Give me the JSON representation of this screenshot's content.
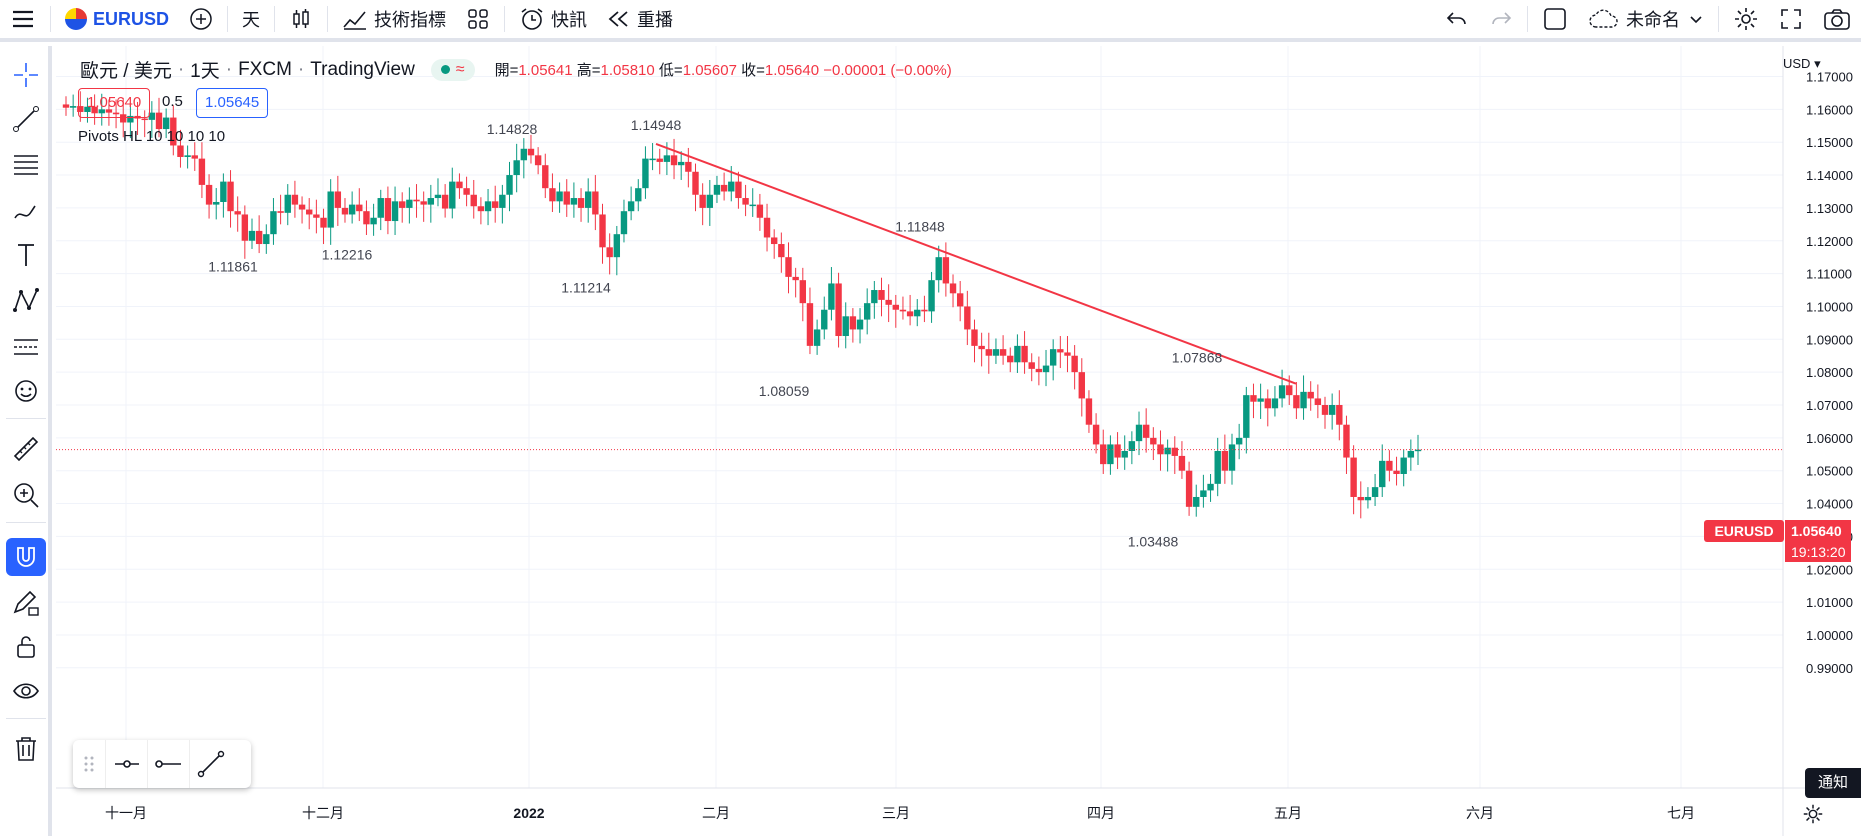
{
  "toolbar": {
    "symbol": "EURUSD",
    "interval": "天",
    "indicators_label": "技術指標",
    "alerts_label": "快訊",
    "replay_label": "重播",
    "layout_name": "未命名"
  },
  "legend": {
    "pair": "歐元 / 美元",
    "interval": "1天",
    "exchange": "FXCM",
    "source": "TradingView",
    "open_label": "開=",
    "open": "1.05641",
    "high_label": "高=",
    "high": "1.05810",
    "low_label": "低=",
    "low": "1.05607",
    "close_label": "收=",
    "close": "1.05640",
    "change": "−0.00001 (−0.00%)",
    "bid": "1.05640",
    "spread": "0.5",
    "ask": "1.05645",
    "indicator": "Pivots HL",
    "indicator_params": "10 10 10 10"
  },
  "axis": {
    "currency": "USD",
    "price_ticks": [
      "1.17000",
      "1.16000",
      "1.15000",
      "1.14000",
      "1.13000",
      "1.12000",
      "1.11000",
      "1.10000",
      "1.09000",
      "1.08000",
      "1.07000",
      "1.06000",
      "1.05000",
      "1.04000",
      "1.03000",
      "1.02000",
      "1.01000",
      "1.00000",
      "0.99000"
    ],
    "time_ticks": [
      "十一月",
      "十二月",
      "2022",
      "二月",
      "三月",
      "四月",
      "五月",
      "六月",
      "七月"
    ],
    "last_symbol": "EURUSD",
    "last_price": "1.05640",
    "countdown": "19:13:20"
  },
  "pivots": [
    {
      "label": "1.11861",
      "kind": "low"
    },
    {
      "label": "1.12216",
      "kind": "low"
    },
    {
      "label": "1.14828",
      "kind": "high"
    },
    {
      "label": "1.11214",
      "kind": "low"
    },
    {
      "label": "1.14948",
      "kind": "high"
    },
    {
      "label": "1.11848",
      "kind": "high"
    },
    {
      "label": "1.08059",
      "kind": "low"
    },
    {
      "label": "1.07868",
      "kind": "high"
    },
    {
      "label": "1.03488",
      "kind": "low"
    }
  ],
  "trendline": {
    "from_price": 1.14948,
    "to_price": 1.0765,
    "color": "#f23645"
  },
  "colors": {
    "up": "#089981",
    "down": "#f23645",
    "accent": "#2962ff"
  },
  "notification_label": "通知",
  "chart_data": {
    "type": "candlestick",
    "y_range": [
      0.99,
      1.175
    ],
    "closes": [
      1.1605,
      1.161,
      1.1592,
      1.1608,
      1.1588,
      1.16,
      1.159,
      1.1585,
      1.156,
      1.158,
      1.1572,
      1.1568,
      1.159,
      1.154,
      1.1575,
      1.149,
      1.1455,
      1.146,
      1.145,
      1.137,
      1.131,
      1.1318,
      1.138,
      1.129,
      1.128,
      1.12,
      1.123,
      1.119,
      1.122,
      1.129,
      1.1285,
      1.134,
      1.131,
      1.1295,
      1.128,
      1.127,
      1.124,
      1.135,
      1.13,
      1.128,
      1.131,
      1.129,
      1.125,
      1.127,
      1.133,
      1.126,
      1.132,
      1.13,
      1.1325,
      1.132,
      1.131,
      1.133,
      1.134,
      1.1298,
      1.138,
      1.136,
      1.134,
      1.1305,
      1.129,
      1.132,
      1.13,
      1.134,
      1.14,
      1.1445,
      1.148,
      1.146,
      1.143,
      1.136,
      1.132,
      1.135,
      1.131,
      1.133,
      1.13,
      1.135,
      1.128,
      1.118,
      1.115,
      1.122,
      1.129,
      1.132,
      1.136,
      1.145,
      1.145,
      1.144,
      1.146,
      1.143,
      1.144,
      1.141,
      1.134,
      1.13,
      1.134,
      1.137,
      1.135,
      1.138,
      1.133,
      1.131,
      1.131,
      1.127,
      1.121,
      1.119,
      1.115,
      1.109,
      1.108,
      1.101,
      1.088,
      1.093,
      1.099,
      1.107,
      1.091,
      1.097,
      1.093,
      1.096,
      1.101,
      1.105,
      1.102,
      1.1005,
      1.099,
      1.0985,
      1.097,
      1.099,
      1.0985,
      1.108,
      1.115,
      1.107,
      1.104,
      1.1,
      1.093,
      1.088,
      1.087,
      1.085,
      1.087,
      1.085,
      1.083,
      1.088,
      1.083,
      1.081,
      1.08,
      1.082,
      1.087,
      1.086,
      1.085,
      1.08,
      1.072,
      1.064,
      1.058,
      1.052,
      1.058,
      1.054,
      1.056,
      1.059,
      1.064,
      1.06,
      1.058,
      1.055,
      1.057,
      1.0545,
      1.05,
      1.039,
      1.042,
      1.044,
      1.046,
      1.056,
      1.05,
      1.058,
      1.06,
      1.073,
      1.071,
      1.072,
      1.069,
      1.072,
      1.076,
      1.073,
      1.069,
      1.074,
      1.072,
      1.07,
      1.067,
      1.07,
      1.064,
      1.054,
      1.042,
      1.041,
      1.042,
      1.045,
      1.053,
      1.05,
      1.049,
      1.054,
      1.056,
      1.0564
    ]
  }
}
